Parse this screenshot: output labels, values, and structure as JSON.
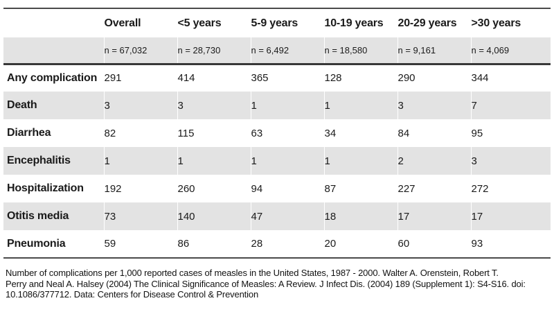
{
  "table": {
    "title_semantic": "Measles complications per 1,000 reported cases by age group",
    "columns": {
      "label": "",
      "overall": "Overall",
      "under5": "<5 years",
      "age5_9": "5-9 years",
      "age10_19": "10-19 years",
      "age20_29": "20-29 years",
      "over30": ">30 years"
    },
    "sample_sizes": {
      "overall": "n = 67,032",
      "under5": "n = 28,730",
      "age5_9": "n = 6,492",
      "age10_19": "n = 18,580",
      "age20_29": "n = 9,161",
      "over30": "n = 4,069"
    },
    "rows": [
      {
        "label": "Any complication",
        "values": [
          "291",
          "414",
          "365",
          "128",
          "290",
          "344"
        ]
      },
      {
        "label": "Death",
        "values": [
          "3",
          "3",
          "1",
          "1",
          "3",
          "7"
        ]
      },
      {
        "label": "Diarrhea",
        "values": [
          "82",
          "115",
          "63",
          "34",
          "84",
          "95"
        ]
      },
      {
        "label": "Encephalitis",
        "values": [
          "1",
          "1",
          "1",
          "1",
          "2",
          "3"
        ]
      },
      {
        "label": "Hospitalization",
        "values": [
          "192",
          "260",
          "94",
          "87",
          "227",
          "272"
        ]
      },
      {
        "label": "Otitis media",
        "values": [
          "73",
          "140",
          "47",
          "18",
          "17",
          "17"
        ]
      },
      {
        "label": "Pneumonia",
        "values": [
          "59",
          "86",
          "28",
          "20",
          "60",
          "93"
        ]
      }
    ]
  },
  "caption": {
    "lines": [
      "Number of complications per 1,000 reported cases of measles in the United States, 1987 - 2000.  Walter A. Orenstein, Robert T.",
      "Perry and Neal A. Halsey (2004) The Clinical Significance of Measles: A Review. J Infect Dis. (2004) 189 (Supplement 1): S4-S16. doi:",
      "10.1086/377712.  Data: Centers for Disease Control & Prevention"
    ]
  },
  "colors": {
    "row_alt_background": "#e3e3e3",
    "rule_dark": "#383838",
    "rule_light": "#4a4a4a",
    "text": "#1a1a1a"
  }
}
